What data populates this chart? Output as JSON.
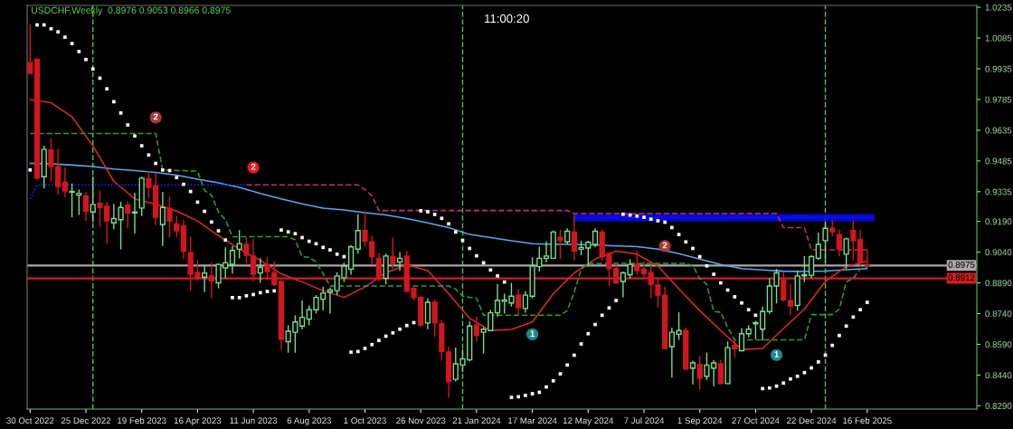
{
  "chart_data": {
    "type": "candlestick",
    "title": "USDCHF,Weekly  0.8976 0.9053 0.8966 0.8975",
    "annotations": [
      "11:00:20",
      {
        "text": "2",
        "x": "2023-03-05",
        "y": 0.9697
      },
      {
        "text": "2",
        "x": "2023-06-11",
        "y": 0.9453
      },
      {
        "text": "2",
        "x": "2024-07-28",
        "y": 0.907
      },
      {
        "text": "1",
        "x": "2024-03-17",
        "y": 0.8639
      },
      {
        "text": "1",
        "x": "2024-11-17",
        "y": 0.8538
      }
    ],
    "x": [
      "2022-10-30",
      "2022-11-06",
      "2022-11-13",
      "2022-11-20",
      "2022-11-27",
      "2022-12-04",
      "2022-12-11",
      "2022-12-18",
      "2022-12-25",
      "2023-01-01",
      "2023-01-08",
      "2023-01-15",
      "2023-01-22",
      "2023-01-29",
      "2023-02-05",
      "2023-02-12",
      "2023-02-19",
      "2023-02-26",
      "2023-03-05",
      "2023-03-12",
      "2023-03-19",
      "2023-03-26",
      "2023-04-02",
      "2023-04-09",
      "2023-04-16",
      "2023-04-23",
      "2023-04-30",
      "2023-05-07",
      "2023-05-14",
      "2023-05-21",
      "2023-05-28",
      "2023-06-04",
      "2023-06-11",
      "2023-06-18",
      "2023-06-25",
      "2023-07-02",
      "2023-07-09",
      "2023-07-16",
      "2023-07-23",
      "2023-07-30",
      "2023-08-06",
      "2023-08-13",
      "2023-08-20",
      "2023-08-27",
      "2023-09-03",
      "2023-09-10",
      "2023-09-17",
      "2023-09-24",
      "2023-10-01",
      "2023-10-08",
      "2023-10-15",
      "2023-10-22",
      "2023-10-29",
      "2023-11-05",
      "2023-11-12",
      "2023-11-19",
      "2023-11-26",
      "2023-12-03",
      "2023-12-10",
      "2023-12-17",
      "2023-12-24",
      "2023-12-31",
      "2024-01-07",
      "2024-01-14",
      "2024-01-21",
      "2024-01-28",
      "2024-02-04",
      "2024-02-11",
      "2024-02-18",
      "2024-02-25",
      "2024-03-03",
      "2024-03-10",
      "2024-03-17",
      "2024-03-24",
      "2024-03-31",
      "2024-04-07",
      "2024-04-14",
      "2024-04-21",
      "2024-04-28",
      "2024-05-05",
      "2024-05-12",
      "2024-05-19",
      "2024-05-26",
      "2024-06-02",
      "2024-06-09",
      "2024-06-16",
      "2024-06-23",
      "2024-06-30",
      "2024-07-07",
      "2024-07-14",
      "2024-07-21",
      "2024-07-28",
      "2024-08-04",
      "2024-08-11",
      "2024-08-18",
      "2024-08-25",
      "2024-09-01",
      "2024-09-08",
      "2024-09-15",
      "2024-09-22",
      "2024-09-29",
      "2024-10-06",
      "2024-10-13",
      "2024-10-20",
      "2024-10-27",
      "2024-11-03",
      "2024-11-10",
      "2024-11-17",
      "2024-11-24",
      "2024-12-01",
      "2024-12-08",
      "2024-12-15",
      "2024-12-22",
      "2024-12-29",
      "2025-01-05",
      "2025-01-12",
      "2025-01-19",
      "2025-01-26",
      "2025-02-02",
      "2025-02-09",
      "2025-02-16"
    ],
    "ohlc": [
      [
        0.9965,
        1.0152,
        0.9912,
        0.9912
      ],
      [
        0.998,
        0.9987,
        0.9393,
        0.9401
      ],
      [
        0.9408,
        0.9559,
        0.9351,
        0.9541
      ],
      [
        0.9539,
        0.9596,
        0.9386,
        0.9457
      ],
      [
        0.9458,
        0.9544,
        0.9321,
        0.936
      ],
      [
        0.9381,
        0.9453,
        0.9308,
        0.9338
      ],
      [
        0.9333,
        0.9375,
        0.921,
        0.9336
      ],
      [
        0.9318,
        0.9345,
        0.9221,
        0.9327
      ],
      [
        0.9315,
        0.9333,
        0.9193,
        0.924
      ],
      [
        0.9236,
        0.9408,
        0.9186,
        0.9273
      ],
      [
        0.9278,
        0.9341,
        0.9163,
        0.9258
      ],
      [
        0.9264,
        0.9285,
        0.9082,
        0.9193
      ],
      [
        0.9183,
        0.9276,
        0.9153,
        0.9204
      ],
      [
        0.9198,
        0.9285,
        0.9054,
        0.9258
      ],
      [
        0.9269,
        0.9288,
        0.9156,
        0.9231
      ],
      [
        0.9231,
        0.933,
        0.913,
        0.9236
      ],
      [
        0.9255,
        0.9408,
        0.9216,
        0.9401
      ],
      [
        0.9398,
        0.9438,
        0.9303,
        0.9356
      ],
      [
        0.9363,
        0.9426,
        0.9172,
        0.921
      ],
      [
        0.9175,
        0.9333,
        0.907,
        0.9258
      ],
      [
        0.9254,
        0.9311,
        0.9111,
        0.9193
      ],
      [
        0.9178,
        0.9216,
        0.9112,
        0.9144
      ],
      [
        0.9168,
        0.9198,
        0.9006,
        0.9045
      ],
      [
        0.9037,
        0.9115,
        0.8852,
        0.8932
      ],
      [
        0.8941,
        0.9003,
        0.89,
        0.8912
      ],
      [
        0.8918,
        0.8977,
        0.8845,
        0.8938
      ],
      [
        0.8924,
        0.8991,
        0.8815,
        0.89
      ],
      [
        0.889,
        0.8985,
        0.8864,
        0.898
      ],
      [
        0.8963,
        0.9063,
        0.8912,
        0.8988
      ],
      [
        0.8981,
        0.907,
        0.8935,
        0.9048
      ],
      [
        0.9054,
        0.9147,
        0.9009,
        0.9082
      ],
      [
        0.9078,
        0.9111,
        0.8985,
        0.9025
      ],
      [
        0.9021,
        0.9105,
        0.8897,
        0.8932
      ],
      [
        0.8938,
        0.901,
        0.889,
        0.8965
      ],
      [
        0.8975,
        0.9015,
        0.8905,
        0.8945
      ],
      [
        0.8939,
        0.8995,
        0.8875,
        0.8882
      ],
      [
        0.8897,
        0.8905,
        0.8564,
        0.8615
      ],
      [
        0.8603,
        0.8684,
        0.8549,
        0.8654
      ],
      [
        0.8649,
        0.8732,
        0.8549,
        0.8699
      ],
      [
        0.8679,
        0.8804,
        0.8663,
        0.8722
      ],
      [
        0.8713,
        0.878,
        0.8684,
        0.8759
      ],
      [
        0.8759,
        0.883,
        0.874,
        0.8819
      ],
      [
        0.881,
        0.887,
        0.8755,
        0.884
      ],
      [
        0.8845,
        0.8867,
        0.874,
        0.8855
      ],
      [
        0.8852,
        0.8942,
        0.883,
        0.8924
      ],
      [
        0.8915,
        0.8988,
        0.8894,
        0.8972
      ],
      [
        0.8957,
        0.9075,
        0.893,
        0.9066
      ],
      [
        0.9055,
        0.9225,
        0.9033,
        0.9145
      ],
      [
        0.9145,
        0.924,
        0.9066,
        0.9093
      ],
      [
        0.909,
        0.912,
        0.898,
        0.9018
      ],
      [
        0.901,
        0.9036,
        0.8897,
        0.8909
      ],
      [
        0.8912,
        0.9033,
        0.8882,
        0.9021
      ],
      [
        0.9018,
        0.9111,
        0.8957,
        0.8985
      ],
      [
        0.8991,
        0.904,
        0.895,
        0.901
      ],
      [
        0.9021,
        0.9045,
        0.8845,
        0.8849
      ],
      [
        0.8863,
        0.887,
        0.8804,
        0.8818
      ],
      [
        0.8819,
        0.8825,
        0.8675,
        0.8684
      ],
      [
        0.8694,
        0.8815,
        0.8664,
        0.8795
      ],
      [
        0.8795,
        0.881,
        0.8627,
        0.8694
      ],
      [
        0.869,
        0.8709,
        0.851,
        0.8555
      ],
      [
        0.8552,
        0.8579,
        0.8329,
        0.8409
      ],
      [
        0.8419,
        0.8574,
        0.8409,
        0.8495
      ],
      [
        0.8489,
        0.8567,
        0.8454,
        0.8519
      ],
      [
        0.8514,
        0.8702,
        0.8507,
        0.8679
      ],
      [
        0.8684,
        0.8727,
        0.8604,
        0.8634
      ],
      [
        0.8649,
        0.8675,
        0.8544,
        0.8664
      ],
      [
        0.8657,
        0.8759,
        0.8654,
        0.8744
      ],
      [
        0.8744,
        0.8885,
        0.8725,
        0.8804
      ],
      [
        0.88,
        0.8837,
        0.874,
        0.8807
      ],
      [
        0.8792,
        0.889,
        0.8774,
        0.8825
      ],
      [
        0.883,
        0.886,
        0.8732,
        0.877
      ],
      [
        0.8765,
        0.8849,
        0.8744,
        0.883
      ],
      [
        0.8825,
        0.9015,
        0.8815,
        0.8972
      ],
      [
        0.8969,
        0.9066,
        0.8945,
        0.901
      ],
      [
        0.901,
        0.9093,
        0.8991,
        0.9021
      ],
      [
        0.901,
        0.9145,
        0.9006,
        0.9138
      ],
      [
        0.9112,
        0.915,
        0.9006,
        0.9097
      ],
      [
        0.909,
        0.9156,
        0.9078,
        0.9142
      ],
      [
        0.9138,
        0.9222,
        0.9,
        0.9045
      ],
      [
        0.9054,
        0.9096,
        0.9025,
        0.9063
      ],
      [
        0.906,
        0.9096,
        0.8972,
        0.9088
      ],
      [
        0.9078,
        0.9156,
        0.9063,
        0.9142
      ],
      [
        0.9138,
        0.915,
        0.9,
        0.9018
      ],
      [
        0.9033,
        0.904,
        0.8875,
        0.896
      ],
      [
        0.896,
        0.8985,
        0.8885,
        0.889
      ],
      [
        0.8897,
        0.8945,
        0.8819,
        0.8939
      ],
      [
        0.893,
        0.9006,
        0.8912,
        0.898
      ],
      [
        0.898,
        0.9048,
        0.893,
        0.895
      ],
      [
        0.8957,
        0.8995,
        0.8912,
        0.8935
      ],
      [
        0.8939,
        0.8976,
        0.8815,
        0.8882
      ],
      [
        0.8879,
        0.8912,
        0.877,
        0.883
      ],
      [
        0.883,
        0.887,
        0.8567,
        0.857
      ],
      [
        0.8579,
        0.8672,
        0.8428,
        0.8649
      ],
      [
        0.8639,
        0.8747,
        0.8612,
        0.8657
      ],
      [
        0.8657,
        0.8672,
        0.8465,
        0.8469
      ],
      [
        0.8474,
        0.851,
        0.8394,
        0.8499
      ],
      [
        0.8492,
        0.8534,
        0.8371,
        0.8424
      ],
      [
        0.8434,
        0.8549,
        0.8416,
        0.8489
      ],
      [
        0.8474,
        0.8514,
        0.8386,
        0.8499
      ],
      [
        0.8495,
        0.8514,
        0.8394,
        0.8398
      ],
      [
        0.8398,
        0.8604,
        0.8398,
        0.8574
      ],
      [
        0.8585,
        0.8612,
        0.8525,
        0.8567
      ],
      [
        0.8559,
        0.8669,
        0.8555,
        0.8642
      ],
      [
        0.8642,
        0.8684,
        0.8624,
        0.8664
      ],
      [
        0.869,
        0.8705,
        0.8615,
        0.8696
      ],
      [
        0.8664,
        0.8774,
        0.8609,
        0.875
      ],
      [
        0.875,
        0.8912,
        0.8739,
        0.8875
      ],
      [
        0.8875,
        0.8957,
        0.879,
        0.8939
      ],
      [
        0.8905,
        0.8942,
        0.88,
        0.8807
      ],
      [
        0.8804,
        0.8885,
        0.8732,
        0.8777
      ],
      [
        0.878,
        0.895,
        0.8754,
        0.8924
      ],
      [
        0.8924,
        0.9021,
        0.8894,
        0.893
      ],
      [
        0.8927,
        0.9025,
        0.8912,
        0.9018
      ],
      [
        0.901,
        0.9135,
        0.9002,
        0.9078
      ],
      [
        0.9096,
        0.919,
        0.8987,
        0.9156
      ],
      [
        0.9157,
        0.9195,
        0.9115,
        0.9141
      ],
      [
        0.9126,
        0.915,
        0.902,
        0.9055
      ],
      [
        0.903,
        0.9111,
        0.896,
        0.9105
      ],
      [
        0.9145,
        0.9195,
        0.9,
        0.9096
      ],
      [
        0.91,
        0.915,
        0.8969,
        0.899
      ],
      [
        0.8976,
        0.9053,
        0.8966,
        0.8975
      ]
    ],
    "colors": [
      "#d2161e",
      "#d2161e",
      "#78dc8c",
      "#d2161e",
      "#d2161e",
      "#d2161e",
      "#78dc8c",
      "#78dc8c",
      "#d2161e",
      "#78dc8c",
      "#d2161e",
      "#d2161e",
      "#78dc8c",
      "#78dc8c",
      "#d2161e",
      "#78dc8c",
      "#78dc8c",
      "#d2161e",
      "#d2161e",
      "#78dc8c",
      "#d2161e",
      "#d2161e",
      "#d2161e",
      "#d2161e",
      "#d2161e",
      "#78dc8c",
      "#d2161e",
      "#78dc8c",
      "#78dc8c",
      "#78dc8c",
      "#78dc8c",
      "#d2161e",
      "#d2161e",
      "#78dc8c",
      "#d2161e",
      "#d2161e",
      "#d2161e",
      "#78dc8c",
      "#78dc8c",
      "#78dc8c",
      "#78dc8c",
      "#78dc8c",
      "#78dc8c",
      "#78dc8c",
      "#78dc8c",
      "#78dc8c",
      "#78dc8c",
      "#78dc8c",
      "#d2161e",
      "#d2161e",
      "#d2161e",
      "#78dc8c",
      "#d2161e",
      "#78dc8c",
      "#d2161e",
      "#d2161e",
      "#d2161e",
      "#78dc8c",
      "#d2161e",
      "#d2161e",
      "#d2161e",
      "#78dc8c",
      "#78dc8c",
      "#78dc8c",
      "#d2161e",
      "#78dc8c",
      "#78dc8c",
      "#78dc8c",
      "#78dc8c",
      "#78dc8c",
      "#d2161e",
      "#78dc8c",
      "#78dc8c",
      "#78dc8c",
      "#78dc8c",
      "#78dc8c",
      "#d2161e",
      "#78dc8c",
      "#d2161e",
      "#78dc8c",
      "#78dc8c",
      "#78dc8c",
      "#d2161e",
      "#d2161e",
      "#d2161e",
      "#78dc8c",
      "#78dc8c",
      "#d2161e",
      "#d2161e",
      "#d2161e",
      "#d2161e",
      "#d2161e",
      "#78dc8c",
      "#78dc8c",
      "#d2161e",
      "#78dc8c",
      "#d2161e",
      "#78dc8c",
      "#78dc8c",
      "#d2161e",
      "#78dc8c",
      "#d2161e",
      "#78dc8c",
      "#78dc8c",
      "#78dc8c",
      "#78dc8c",
      "#78dc8c",
      "#78dc8c",
      "#d2161e",
      "#d2161e",
      "#78dc8c",
      "#78dc8c",
      "#78dc8c",
      "#78dc8c",
      "#78dc8c",
      "#d2161e",
      "#d2161e",
      "#78dc8c",
      "#d2161e",
      "#d2161e",
      "#d2161e"
    ],
    "xlim": [
      "2022-10-27",
      "2025-06-06"
    ],
    "xticks": [
      {
        "value": "2022-10-30",
        "label": "30 Oct 2022"
      },
      {
        "value": "2022-12-25",
        "label": "25 Dec 2022"
      },
      {
        "value": "2023-02-19",
        "label": "19 Feb 2023"
      },
      {
        "value": "2023-04-16",
        "label": "16 Apr 2023"
      },
      {
        "value": "2023-06-11",
        "label": "11 Jun 2023"
      },
      {
        "value": "2023-08-06",
        "label": "6 Aug 2023"
      },
      {
        "value": "2023-10-01",
        "label": "1 Oct 2023"
      },
      {
        "value": "2023-11-26",
        "label": "26 Nov 2023"
      },
      {
        "value": "2024-01-21",
        "label": "21 Jan 2024"
      },
      {
        "value": "2024-03-17",
        "label": "17 Mar 2024"
      },
      {
        "value": "2024-05-12",
        "label": "12 May 2024"
      },
      {
        "value": "2024-07-07",
        "label": "7 Jul 2024"
      },
      {
        "value": "2024-09-01",
        "label": "1 Sep 2024"
      },
      {
        "value": "2024-10-27",
        "label": "27 Oct 2024"
      },
      {
        "value": "2024-12-22",
        "label": "22 Dec 2024"
      },
      {
        "value": "2025-02-16",
        "label": "16 Feb 2025"
      }
    ],
    "ylim": [
      0.8274,
      1.0244
    ],
    "yticks": [
      1.0235,
      1.0085,
      0.9935,
      0.9785,
      0.9635,
      0.9485,
      0.9335,
      {
        "value": 0.919,
        "label": "0.9190"
      },
      {
        "value": 0.904,
        "label": "0.9040"
      },
      {
        "value": 0.889,
        "label": "0.8890"
      },
      {
        "value": 0.874,
        "label": "0.8740"
      },
      {
        "value": 0.859,
        "label": "0.8590"
      },
      {
        "value": 0.844,
        "label": "0.8440"
      },
      {
        "value": 0.829,
        "label": "0.8290"
      }
    ],
    "ref_lines": [
      {
        "axis": "x",
        "value": "2023-01-01",
        "color": "#46c846",
        "line_style": "dashed"
      },
      {
        "axis": "x",
        "value": "2024-01-07",
        "color": "#46c846",
        "line_style": "dashed"
      },
      {
        "axis": "x",
        "value": "2025-01-05",
        "color": "#46c846",
        "line_style": "dashed"
      },
      {
        "axis": "y",
        "value": 0.8975,
        "label": "0.8975",
        "color": "#a8a8a8"
      },
      {
        "axis": "y",
        "value": 0.8912,
        "label": "0.8912",
        "color": "#d21e1e"
      }
    ],
    "series": [
      {
        "type": "line",
        "color": "#0a0aff",
        "x": [
          "2024-04-28",
          "2025-02-23"
        ],
        "values": [
          0.9208,
          0.9208
        ],
        "lower": [
          0.919,
          0.919
        ],
        "upper": [
          0.9226,
          0.9226
        ]
      },
      {
        "type": "line",
        "color": "#58a8ee",
        "x": [
          "2022-10-30",
          "2022-11-20",
          "2022-12-11",
          "2023-01-01",
          "2023-01-22",
          "2023-02-12",
          "2023-03-05",
          "2023-03-26",
          "2023-04-16",
          "2023-05-07",
          "2023-05-28",
          "2023-06-18",
          "2023-07-09",
          "2023-07-30",
          "2023-08-20",
          "2023-09-10",
          "2023-10-01",
          "2023-10-22",
          "2023-11-12",
          "2023-12-03",
          "2023-12-24",
          "2024-01-14",
          "2024-02-04",
          "2024-02-25",
          "2024-03-17",
          "2024-04-07",
          "2024-04-28",
          "2024-05-19",
          "2024-06-09",
          "2024-06-30",
          "2024-07-21",
          "2024-08-11",
          "2024-09-01",
          "2024-09-22",
          "2024-10-13",
          "2024-11-03",
          "2024-11-24",
          "2024-12-15",
          "2025-01-05",
          "2025-01-26",
          "2025-02-16"
        ],
        "values": [
          0.9473,
          0.9471,
          0.9465,
          0.9458,
          0.9446,
          0.9438,
          0.9429,
          0.9416,
          0.9396,
          0.9378,
          0.9356,
          0.9326,
          0.93,
          0.9276,
          0.9255,
          0.9246,
          0.9233,
          0.9221,
          0.9204,
          0.9183,
          0.916,
          0.9126,
          0.9111,
          0.9096,
          0.9081,
          0.9078,
          0.9078,
          0.9075,
          0.907,
          0.9067,
          0.9055,
          0.9033,
          0.9006,
          0.898,
          0.896,
          0.8953,
          0.8947,
          0.8945,
          0.8948,
          0.8954,
          0.896
        ]
      },
      {
        "type": "line",
        "color": "#e02828",
        "x": [
          "2022-10-30",
          "2022-11-20",
          "2022-12-11",
          "2023-01-01",
          "2023-01-22",
          "2023-02-12",
          "2023-03-05",
          "2023-03-26",
          "2023-04-16",
          "2023-05-07",
          "2023-05-28",
          "2023-06-18",
          "2023-07-09",
          "2023-07-30",
          "2023-08-20",
          "2023-09-10",
          "2023-10-01",
          "2023-10-22",
          "2023-11-12",
          "2023-12-03",
          "2023-12-24",
          "2024-01-14",
          "2024-02-04",
          "2024-02-25",
          "2024-03-17",
          "2024-04-07",
          "2024-04-28",
          "2024-05-19",
          "2024-06-09",
          "2024-06-30",
          "2024-07-21",
          "2024-08-11",
          "2024-09-01",
          "2024-09-22",
          "2024-10-13",
          "2024-11-03",
          "2024-11-24",
          "2024-12-15",
          "2025-01-05",
          "2025-01-26",
          "2025-02-16"
        ],
        "values": [
          0.9784,
          0.9769,
          0.9701,
          0.9559,
          0.9386,
          0.93,
          0.9273,
          0.924,
          0.9192,
          0.912,
          0.9055,
          0.9,
          0.8934,
          0.8894,
          0.8852,
          0.8819,
          0.887,
          0.8939,
          0.8979,
          0.895,
          0.8837,
          0.8717,
          0.8657,
          0.8663,
          0.8699,
          0.8837,
          0.8938,
          0.9006,
          0.9045,
          0.903,
          0.8972,
          0.886,
          0.8755,
          0.8657,
          0.8565,
          0.857,
          0.8667,
          0.8762,
          0.8897,
          0.8969,
          0.8995
        ]
      },
      {
        "type": "line",
        "color": "#2e9e2e",
        "line_style": "dashed",
        "x": [
          "2022-10-30",
          "2023-03-05",
          "2023-03-12",
          "2023-04-16",
          "2023-04-23",
          "2023-04-30",
          "2023-05-07",
          "2023-05-14",
          "2023-05-21",
          "2023-07-16",
          "2023-07-23",
          "2023-07-30",
          "2023-08-06",
          "2023-08-13",
          "2023-08-20",
          "2023-08-27",
          "2023-12-24",
          "2023-12-31",
          "2024-01-07",
          "2024-01-14",
          "2024-01-21",
          "2024-01-28",
          "2024-04-14",
          "2024-04-21",
          "2024-04-28",
          "2024-05-05",
          "2024-05-12",
          "2024-08-18",
          "2024-08-25",
          "2024-09-01",
          "2024-09-08",
          "2024-09-15",
          "2024-09-22",
          "2024-09-29",
          "2024-10-06",
          "2024-12-15",
          "2024-12-22",
          "2025-01-12",
          "2025-01-19",
          "2025-01-26",
          "2025-02-02",
          "2025-02-09",
          "2025-02-16"
        ],
        "values": [
          0.9619,
          0.9619,
          0.9441,
          0.9435,
          0.9341,
          0.9318,
          0.9236,
          0.9198,
          0.9115,
          0.9115,
          0.91,
          0.9018,
          0.9015,
          0.8991,
          0.8935,
          0.8875,
          0.8875,
          0.886,
          0.8825,
          0.8819,
          0.8815,
          0.8732,
          0.8732,
          0.8755,
          0.8845,
          0.8957,
          0.8985,
          0.8985,
          0.8973,
          0.8912,
          0.8882,
          0.875,
          0.8747,
          0.8672,
          0.8612,
          0.8612,
          0.8735,
          0.8735,
          0.8762,
          0.8894,
          0.8912,
          0.8957,
          0.8965
        ]
      },
      {
        "type": "line",
        "color": "#1a1aff",
        "line_style": "dotted",
        "x": [
          "2022-10-30",
          "2022-11-06",
          "2023-06-04"
        ],
        "values": [
          0.93,
          0.9368,
          0.9368
        ]
      },
      {
        "type": "line",
        "color": "#c82a78",
        "line_style": "dashed",
        "x": [
          "2023-06-04",
          "2023-09-24",
          "2023-10-01",
          "2023-10-08",
          "2023-10-15",
          "2024-04-21",
          "2024-04-28",
          "2024-11-17",
          "2024-11-24",
          "2024-12-15",
          "2024-12-22",
          "2025-02-16"
        ],
        "values": [
          0.9368,
          0.9368,
          0.9345,
          0.9315,
          0.9243,
          0.9243,
          0.9228,
          0.9228,
          0.916,
          0.916,
          0.9051,
          0.9051
        ]
      },
      {
        "type": "scatter",
        "marker": "square",
        "color": "#ffffff",
        "values": [
          0.9441,
          1.0149,
          1.0149,
          1.013,
          1.0115,
          1.0089,
          1.0058,
          1.0019,
          0.998,
          0.9934,
          0.9889,
          0.9837,
          0.9774,
          0.9719,
          0.9661,
          0.9607,
          0.9559,
          0.9514,
          0.9473,
          0.9441,
          0.9438,
          0.9404,
          0.9371,
          0.9336,
          0.9284,
          0.9239,
          0.9187,
          0.9144,
          0.9099,
          0.8818,
          0.8818,
          0.8827,
          0.8833,
          0.8842,
          0.8848,
          0.8851,
          0.9148,
          0.9139,
          0.913,
          0.9111,
          0.9093,
          0.9081,
          0.9063,
          0.9051,
          0.903,
          0.9018,
          0.8552,
          0.8555,
          0.857,
          0.8589,
          0.8609,
          0.863,
          0.8646,
          0.8664,
          0.8682,
          0.8696,
          0.9242,
          0.9237,
          0.9224,
          0.9205,
          0.9178,
          0.9138,
          0.9097,
          0.9058,
          0.9022,
          0.8988,
          0.8953,
          0.8924,
          0.8894,
          0.8331,
          0.8334,
          0.8341,
          0.8349,
          0.8356,
          0.8382,
          0.8412,
          0.8446,
          0.8489,
          0.8537,
          0.8592,
          0.8642,
          0.8687,
          0.8732,
          0.8768,
          0.8804,
          0.9225,
          0.9221,
          0.9216,
          0.921,
          0.9201,
          0.9193,
          0.9186,
          0.916,
          0.9126,
          0.909,
          0.9058,
          0.9018,
          0.8973,
          0.8932,
          0.889,
          0.8855,
          0.8822,
          0.8792,
          0.8759,
          0.8732,
          0.8374,
          0.8377,
          0.8386,
          0.8401,
          0.8421,
          0.8434,
          0.8452,
          0.8475,
          0.8504,
          0.8537,
          0.8585,
          0.8633,
          0.8679,
          0.8723,
          0.8759,
          0.8795
        ]
      },
      {
        "type": "scatter",
        "marker": "circle",
        "colors": [
          "#a83a3a",
          "#e41b1b",
          "#a83a3a"
        ],
        "x": [
          "2023-03-05",
          "2023-06-11",
          "2024-07-28"
        ],
        "values": [
          0.9697,
          0.9453,
          0.907
        ]
      },
      {
        "type": "scatter",
        "marker": "circle",
        "color": "#1d8a8a",
        "x": [
          "2024-03-17",
          "2024-11-17"
        ],
        "values": [
          0.8639,
          0.8538
        ]
      }
    ]
  }
}
